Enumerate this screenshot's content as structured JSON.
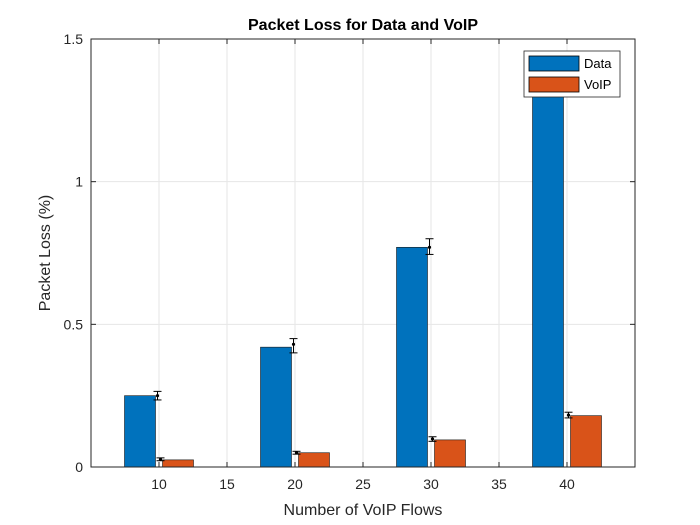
{
  "chart_data": {
    "type": "bar",
    "title": "Packet Loss for Data and VoIP",
    "xlabel": "Number of VoIP Flows",
    "ylabel": "Packet Loss (%)",
    "xlim": [
      5,
      45
    ],
    "ylim": [
      0,
      1.5
    ],
    "x_ticks": [
      10,
      15,
      20,
      25,
      30,
      35,
      40
    ],
    "y_ticks": [
      0,
      0.5,
      1,
      1.5
    ],
    "y_tick_labels": [
      "0",
      "0.5",
      "1",
      "1.5"
    ],
    "grid": true,
    "legend_position": "top-right",
    "categories": [
      10,
      20,
      30,
      40
    ],
    "series": [
      {
        "name": "Data",
        "color": "#0072BD",
        "values": [
          0.25,
          0.42,
          0.77,
          1.37
        ],
        "marker_values": [
          0.25,
          0.43,
          0.77,
          1.37
        ],
        "error_low": [
          0.235,
          0.4,
          0.745,
          1.34
        ],
        "error_high": [
          0.265,
          0.45,
          0.8,
          1.4
        ]
      },
      {
        "name": "VoIP",
        "color": "#D95319",
        "values": [
          0.025,
          0.05,
          0.095,
          0.18
        ],
        "marker_values": [
          0.027,
          0.05,
          0.098,
          0.182
        ],
        "error_low": [
          0.022,
          0.045,
          0.09,
          0.172
        ],
        "error_high": [
          0.032,
          0.055,
          0.106,
          0.192
        ]
      }
    ]
  }
}
